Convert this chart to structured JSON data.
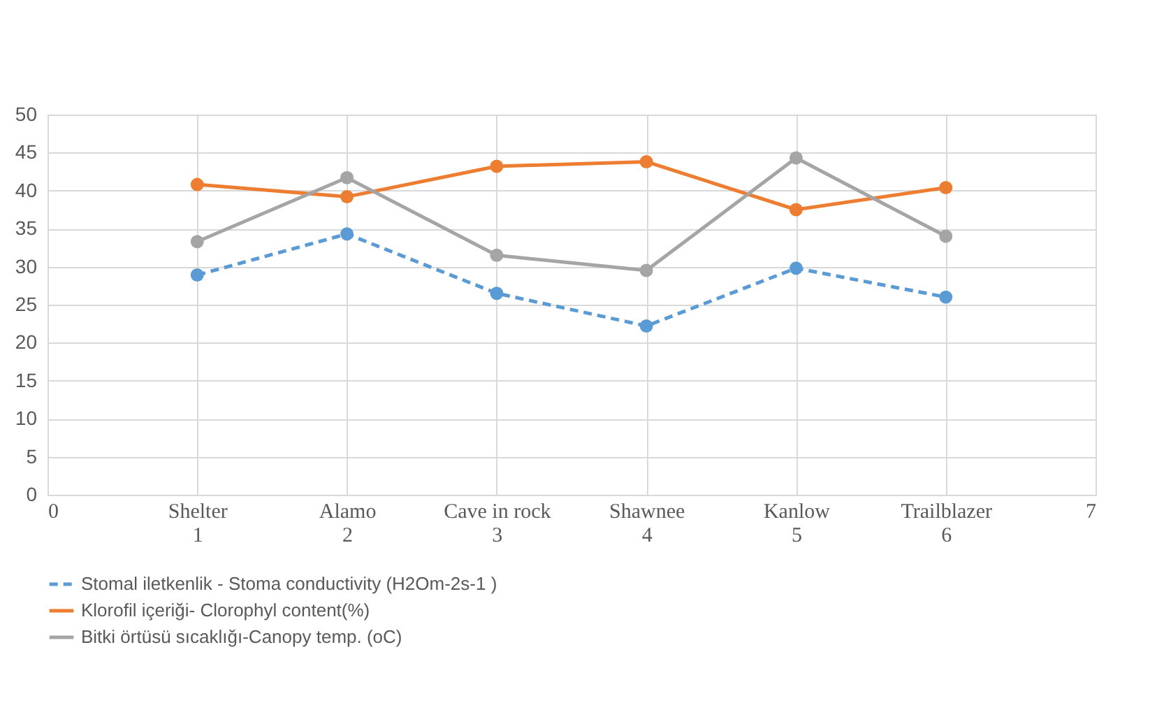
{
  "chart_data": {
    "type": "line",
    "x": [
      1,
      2,
      3,
      4,
      5,
      6
    ],
    "xlim": [
      0,
      7
    ],
    "xticks": [
      0,
      {
        "value": 1,
        "label": "Shelter\n1"
      },
      {
        "value": 2,
        "label": "Alamo\n2"
      },
      {
        "value": 3,
        "label": "Cave in rock\n3"
      },
      {
        "value": 4,
        "label": "Shawnee\n4"
      },
      {
        "value": 5,
        "label": "Kanlow\n5"
      },
      {
        "value": 6,
        "label": "Trailblazer\n6"
      },
      7
    ],
    "ylim": [
      0,
      50
    ],
    "yticks": [
      0,
      5,
      10,
      15,
      20,
      25,
      30,
      35,
      40,
      45,
      50
    ],
    "grid": true,
    "legend": "bottom",
    "marker": "circle",
    "series": [
      {
        "name": "Stomal iletkenlik - Stoma conductivity (H2Om-2s-1 )",
        "color": "#5b9bd5",
        "line_style": "dashed",
        "values": [
          28.9,
          34.3,
          26.5,
          22.2,
          29.8,
          26.0
        ]
      },
      {
        "name": "Klorofil içeriği- Clorophyl content(%)",
        "color": "#ed7d31",
        "line_style": "solid",
        "values": [
          40.8,
          39.2,
          43.2,
          43.8,
          37.5,
          40.4
        ]
      },
      {
        "name": "Bitki örtüsü sıcaklığı-Canopy temp. (oC)",
        "color": "#a5a5a5",
        "line_style": "solid",
        "values": [
          33.3,
          41.7,
          31.5,
          29.5,
          44.3,
          34.0
        ]
      }
    ]
  }
}
